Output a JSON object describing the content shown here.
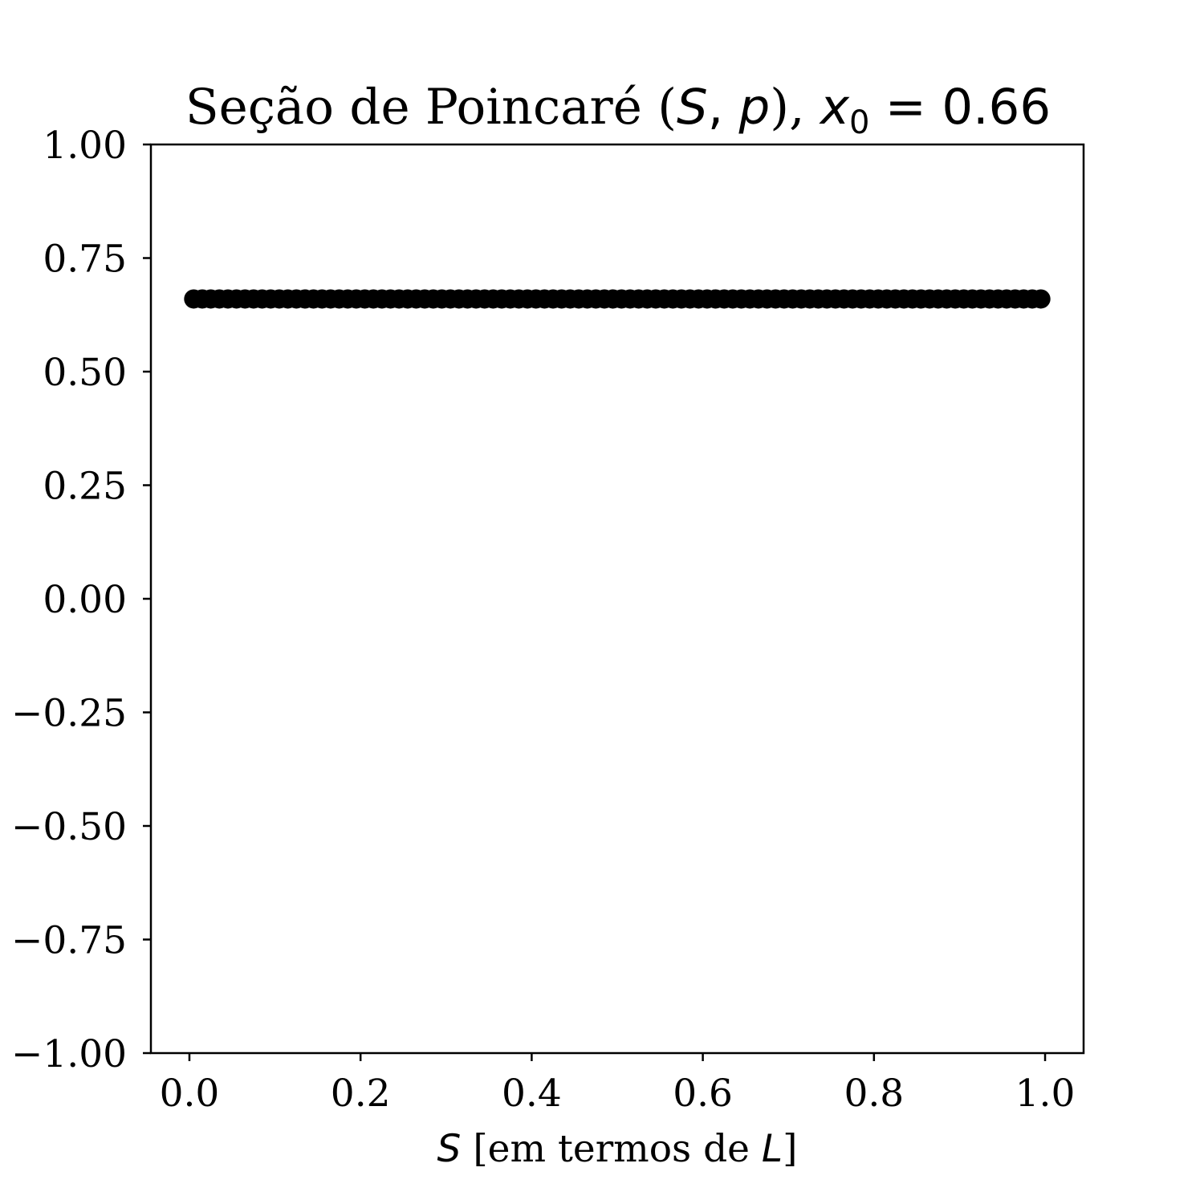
{
  "chart_data": {
    "type": "scatter",
    "title": {
      "text": "Seção de Poincaré (",
      "math_s": "S",
      "comma": ", ",
      "math_p": "p",
      "close": "), ",
      "math_x": "x",
      "sub": "0",
      "equals": " = 0.66"
    },
    "xlabel": {
      "math_s": "S",
      "text": " [em termos de ",
      "math_l": "L",
      "close": "]"
    },
    "ylabel": "",
    "xlim": [
      -0.045,
      1.045
    ],
    "ylim": [
      -1.0,
      1.0
    ],
    "xticks": [
      {
        "value": 0.0,
        "label": "0.0"
      },
      {
        "value": 0.2,
        "label": "0.2"
      },
      {
        "value": 0.4,
        "label": "0.4"
      },
      {
        "value": 0.6,
        "label": "0.6"
      },
      {
        "value": 0.8,
        "label": "0.8"
      },
      {
        "value": 1.0,
        "label": "1.0"
      }
    ],
    "yticks": [
      {
        "value": 1.0,
        "label": "1.00"
      },
      {
        "value": 0.75,
        "label": "0.75"
      },
      {
        "value": 0.5,
        "label": "0.50"
      },
      {
        "value": 0.25,
        "label": "0.25"
      },
      {
        "value": 0.0,
        "label": "0.00"
      },
      {
        "value": -0.25,
        "label": "−0.25"
      },
      {
        "value": -0.5,
        "label": "−0.50"
      },
      {
        "value": -0.75,
        "label": "−0.75"
      },
      {
        "value": -1.0,
        "label": "−1.00"
      }
    ],
    "grid": false,
    "series": [
      {
        "color": "#000000",
        "marker": "circle",
        "x": [
          0.005,
          0.015,
          0.025,
          0.035,
          0.045,
          0.055,
          0.065,
          0.075,
          0.085,
          0.095,
          0.105,
          0.115,
          0.125,
          0.135,
          0.145,
          0.155,
          0.165,
          0.175,
          0.185,
          0.195,
          0.205,
          0.215,
          0.225,
          0.235,
          0.245,
          0.255,
          0.265,
          0.275,
          0.285,
          0.295,
          0.305,
          0.315,
          0.325,
          0.335,
          0.345,
          0.355,
          0.365,
          0.375,
          0.385,
          0.395,
          0.405,
          0.415,
          0.425,
          0.435,
          0.445,
          0.455,
          0.465,
          0.475,
          0.485,
          0.495,
          0.505,
          0.515,
          0.525,
          0.535,
          0.545,
          0.555,
          0.565,
          0.575,
          0.585,
          0.595,
          0.605,
          0.615,
          0.625,
          0.635,
          0.645,
          0.655,
          0.665,
          0.675,
          0.685,
          0.695,
          0.705,
          0.715,
          0.725,
          0.735,
          0.745,
          0.755,
          0.765,
          0.775,
          0.785,
          0.795,
          0.805,
          0.815,
          0.825,
          0.835,
          0.845,
          0.855,
          0.865,
          0.875,
          0.885,
          0.895,
          0.905,
          0.915,
          0.925,
          0.935,
          0.945,
          0.955,
          0.965,
          0.975,
          0.985,
          0.995
        ],
        "y_constant": 0.66
      }
    ]
  }
}
